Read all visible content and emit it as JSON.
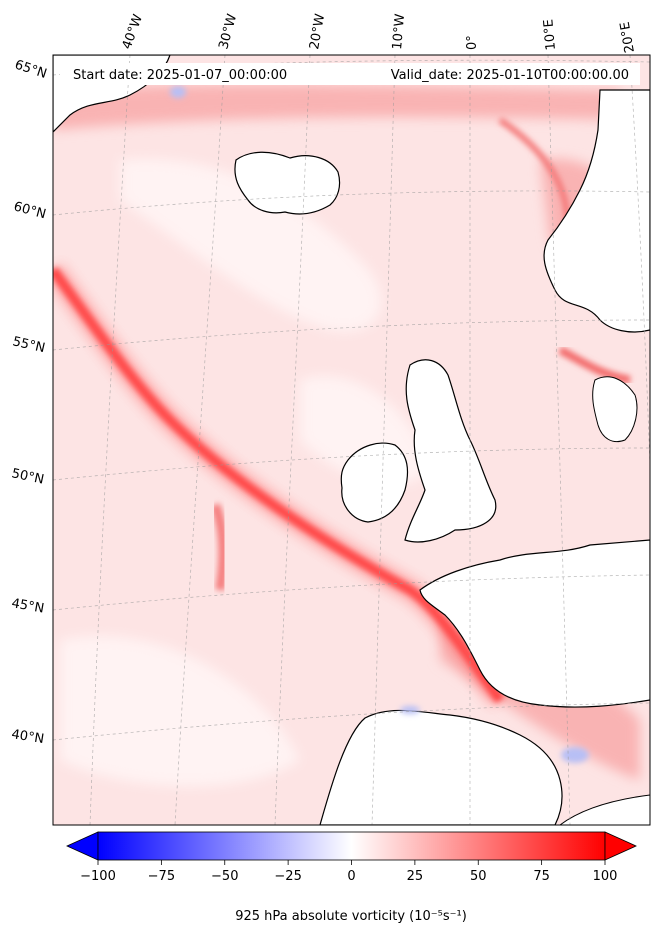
{
  "header": {
    "start_date": "Start date: 2025-01-07_00:00:00",
    "valid_date": "Valid_date: 2025-01-10T00:00:00.00"
  },
  "map": {
    "projection": "lambert-conic",
    "field": "925 hPa absolute vorticity",
    "lon_labels": [
      "40°W",
      "30°W",
      "20°W",
      "10°W",
      "0°",
      "10°E",
      "20°E"
    ],
    "lat_labels": [
      "65°N",
      "60°N",
      "55°N",
      "50°N",
      "45°N",
      "40°N"
    ],
    "regions": [
      "iceland-landmass",
      "british-isles-landmass",
      "ireland-landmass",
      "scandinavia-landmass",
      "iberia-landmass",
      "france-landmass",
      "greenland-coast"
    ],
    "features": [
      "vorticity-band-main",
      "vorticity-band-secondary",
      "gridlines"
    ]
  },
  "colorbar": {
    "label": "925 hPa absolute vorticity (10⁻⁵s⁻¹)",
    "min": -100,
    "max": 100,
    "extend": "both",
    "low_color": "#0000ff",
    "mid_color": "#ffffff",
    "high_color": "#ff0000",
    "ticks": [
      "−100",
      "−75",
      "−50",
      "−25",
      "0",
      "25",
      "50",
      "75",
      "100"
    ],
    "tick_values": [
      -100,
      -75,
      -50,
      -25,
      0,
      25,
      50,
      75,
      100
    ]
  }
}
